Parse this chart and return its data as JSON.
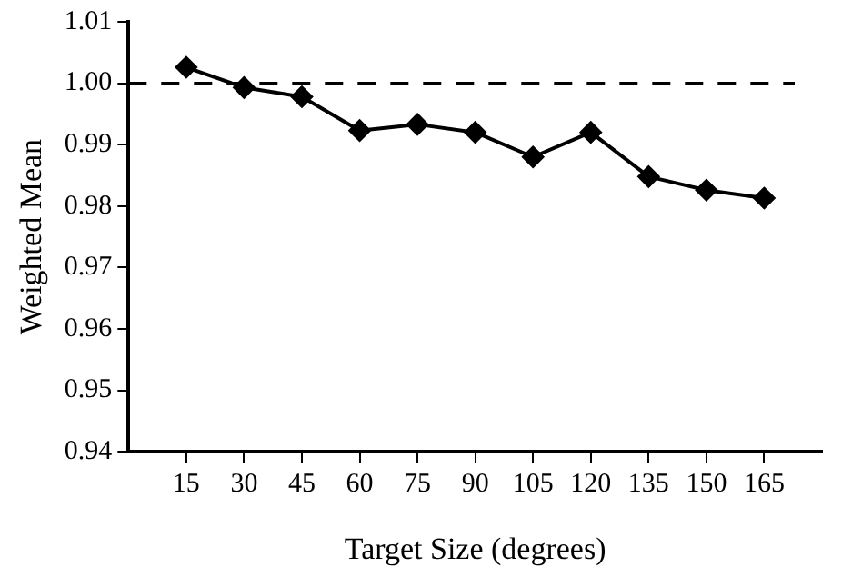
{
  "chart_data": {
    "type": "line",
    "xlabel": "Target Size (degrees)",
    "ylabel": "Weighted Mean",
    "x": [
      15,
      30,
      45,
      60,
      75,
      90,
      105,
      120,
      135,
      150,
      165
    ],
    "series": [
      {
        "color": "#000000",
        "values": [
          1.0026,
          0.9993,
          0.9978,
          0.9923,
          0.9933,
          0.992,
          0.988,
          0.992,
          0.9848,
          0.9826,
          0.9813
        ]
      }
    ],
    "xlim": [
      0,
      180
    ],
    "xticks": [
      15,
      30,
      45,
      60,
      75,
      90,
      105,
      120,
      135,
      150,
      165
    ],
    "ylim": [
      0.94,
      1.01
    ],
    "yticks": [
      {
        "value": 0.94,
        "label": "0.94"
      },
      {
        "value": 0.95,
        "label": "0.95"
      },
      {
        "value": 0.96,
        "label": "0.96"
      },
      {
        "value": 0.97,
        "label": "0.97"
      },
      {
        "value": 0.98,
        "label": "0.98"
      },
      {
        "value": 0.99,
        "label": "0.99"
      },
      {
        "value": 1.0,
        "label": "1.00"
      },
      {
        "value": 1.01,
        "label": "1.01"
      }
    ],
    "ref_lines": [
      {
        "axis": "y",
        "value": 1.0,
        "color": "#000000",
        "line_style": "dashed"
      }
    ],
    "marker": "diamond",
    "line_style": "solid",
    "grid": false,
    "legend": false
  }
}
